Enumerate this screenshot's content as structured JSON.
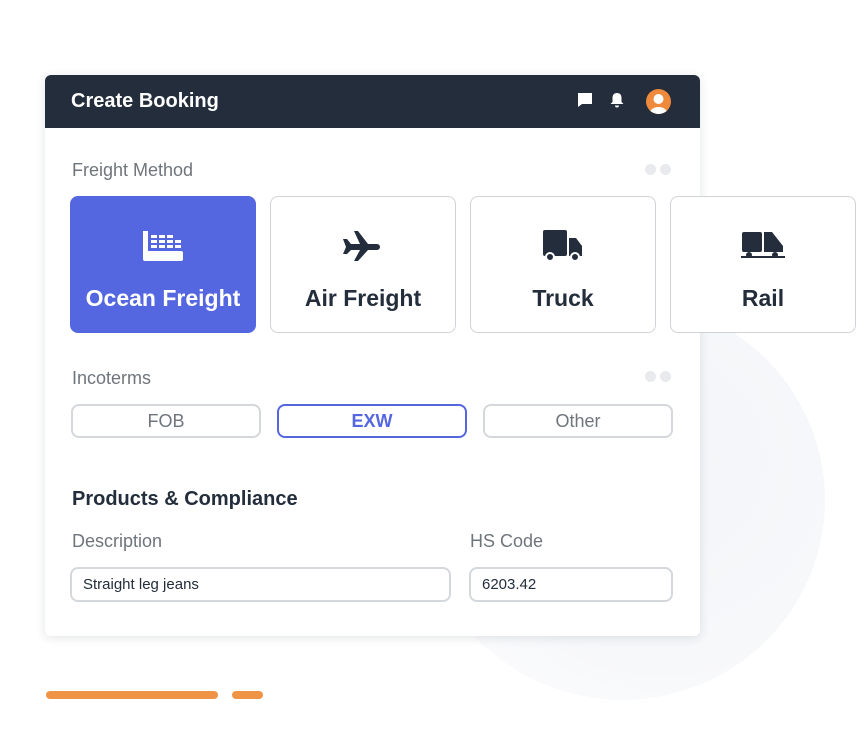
{
  "header": {
    "title": "Create Booking",
    "icons": [
      "chat-icon",
      "bell-icon",
      "avatar-icon"
    ]
  },
  "freight": {
    "label": "Freight Method",
    "options": [
      {
        "label": "Ocean Freight",
        "icon": "ship-icon",
        "selected": true
      },
      {
        "label": "Air Freight",
        "icon": "plane-icon",
        "selected": false
      },
      {
        "label": "Truck",
        "icon": "truck-icon",
        "selected": false
      },
      {
        "label": "Rail",
        "icon": "train-icon",
        "selected": false
      }
    ]
  },
  "incoterms": {
    "label": "Incoterms",
    "options": [
      {
        "label": "FOB",
        "selected": false
      },
      {
        "label": "EXW",
        "selected": true
      },
      {
        "label": "Other",
        "selected": false
      }
    ]
  },
  "products": {
    "title": "Products & Compliance",
    "description_label": "Description",
    "description_value": "Straight leg jeans",
    "hs_label": "HS Code",
    "hs_value": "6203.42"
  },
  "colors": {
    "header": "#232d3b",
    "accent": "#5567e0",
    "orange": "#ef9445"
  }
}
